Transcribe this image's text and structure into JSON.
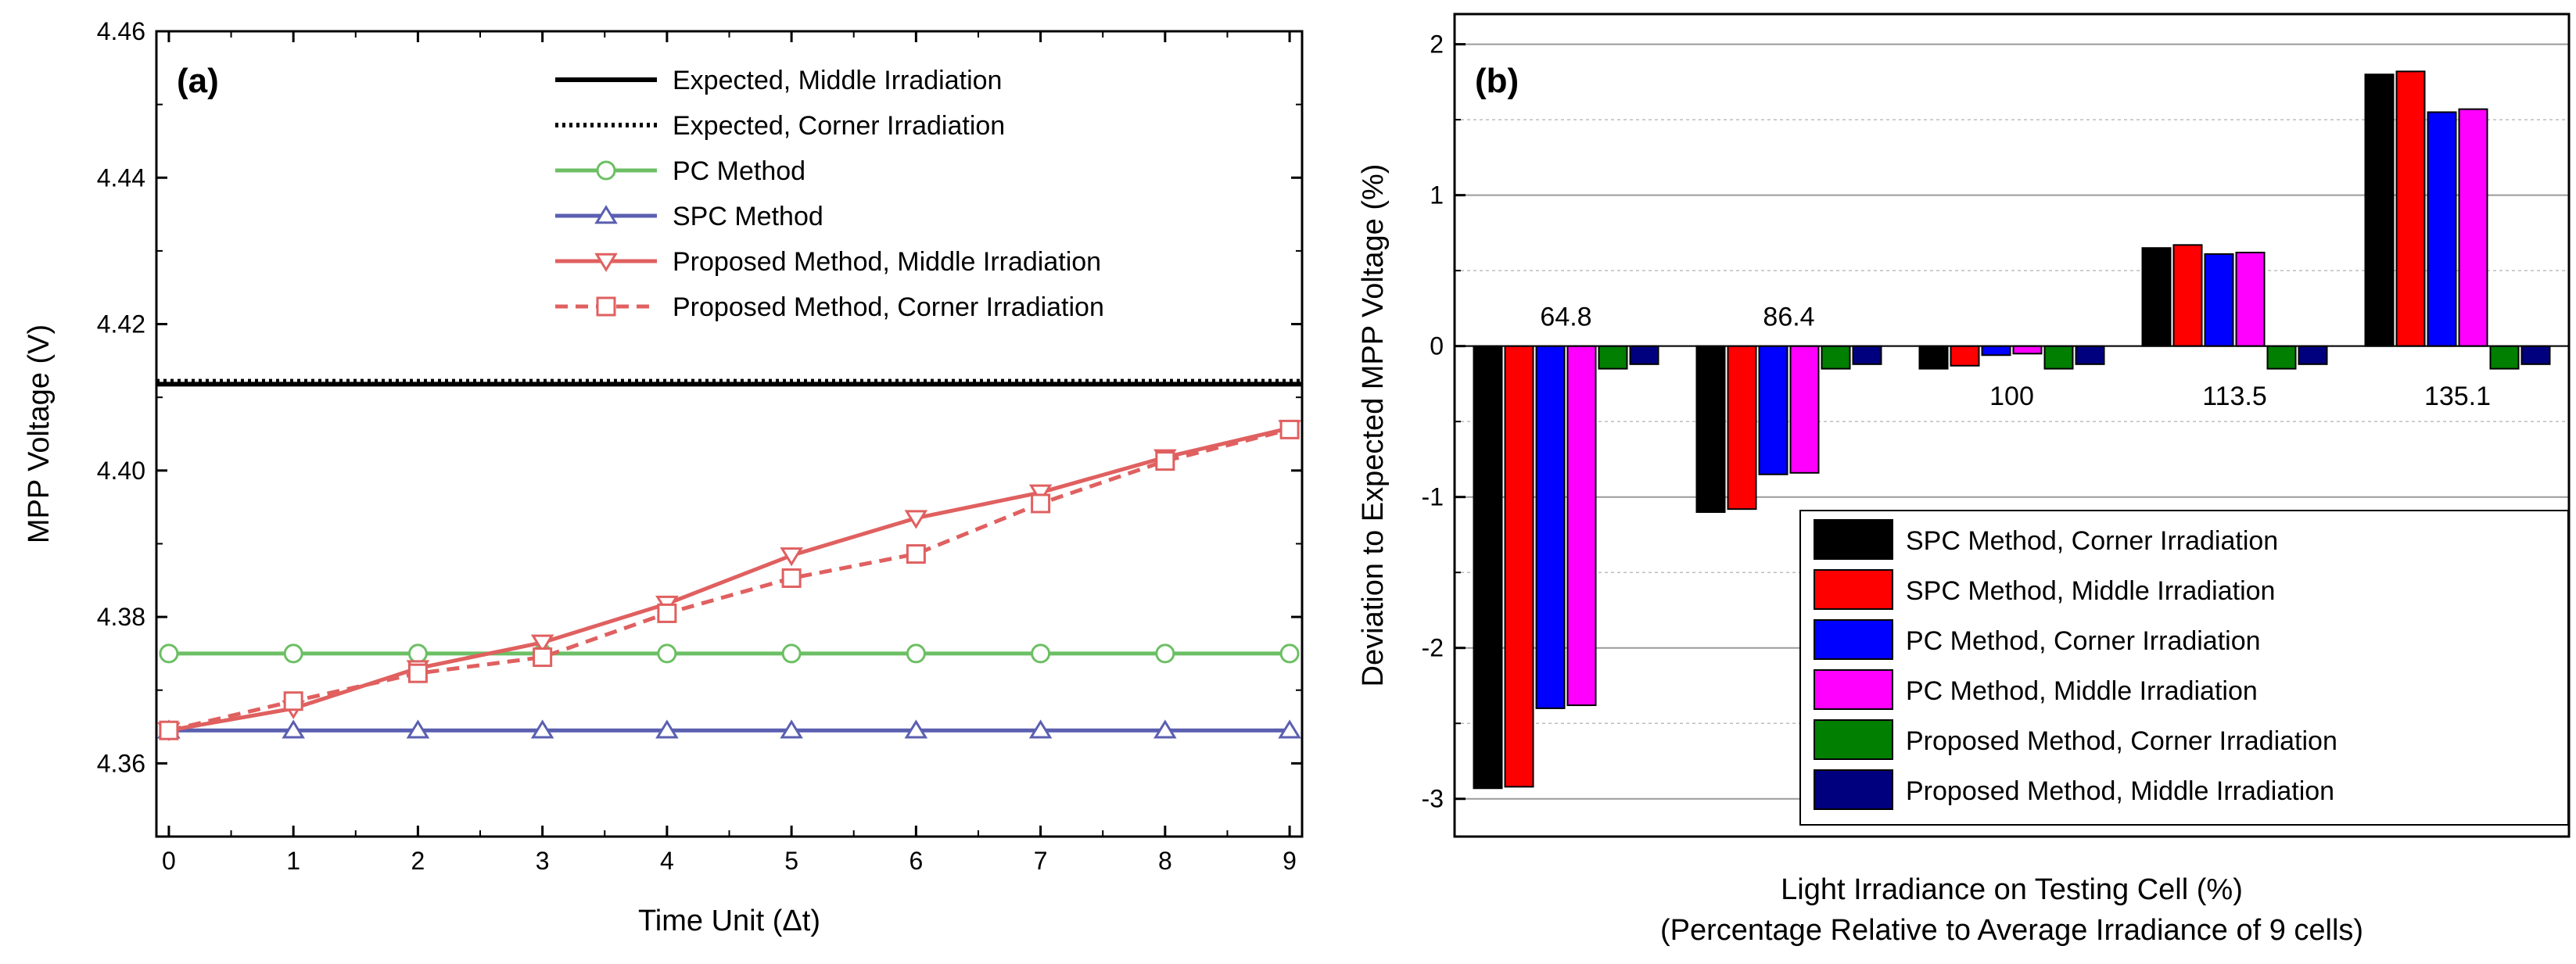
{
  "chart_data": [
    {
      "panel_label": "(a)",
      "type": "line",
      "xlabel": "Time Unit (Δt)",
      "ylabel": "MPP Voltage (V)",
      "xlim": [
        -0.1,
        9.1
      ],
      "ylim": [
        4.35,
        4.46
      ],
      "xticks": [
        "0",
        "1",
        "2",
        "3",
        "4",
        "5",
        "6",
        "7",
        "8",
        "9"
      ],
      "yticks": [
        "4.36",
        "4.38",
        "4.40",
        "4.42",
        "4.44",
        "4.46"
      ],
      "legend_position": "top-right",
      "series": [
        {
          "name": "Expected, Middle Irradiation",
          "color": "#000000",
          "style": "solid",
          "marker": "none",
          "x": [
            -0.1,
            9.1
          ],
          "values": [
            4.4118,
            4.4118
          ]
        },
        {
          "name": "Expected, Corner Irradiation",
          "color": "#000000",
          "style": "dotted",
          "marker": "none",
          "x": [
            -0.1,
            9.1
          ],
          "values": [
            4.4122,
            4.4122
          ]
        },
        {
          "name": "PC Method",
          "color": "#6cbf64",
          "style": "solid",
          "marker": "circle",
          "x": [
            0,
            1,
            2,
            3,
            4,
            5,
            6,
            7,
            8,
            9
          ],
          "values": [
            4.375,
            4.375,
            4.375,
            4.375,
            4.375,
            4.375,
            4.375,
            4.375,
            4.375,
            4.375
          ]
        },
        {
          "name": "SPC Method",
          "color": "#5a5fb0",
          "style": "solid",
          "marker": "triangle-up",
          "x": [
            0,
            1,
            2,
            3,
            4,
            5,
            6,
            7,
            8,
            9
          ],
          "values": [
            4.3645,
            4.3645,
            4.3645,
            4.3645,
            4.3645,
            4.3645,
            4.3645,
            4.3645,
            4.3645,
            4.3645
          ]
        },
        {
          "name": "Proposed Method, Middle Irradiation",
          "color": "#e06060",
          "style": "solid",
          "marker": "triangle-down",
          "x": [
            0,
            1,
            2,
            3,
            4,
            5,
            6,
            7,
            8,
            9
          ],
          "values": [
            4.3645,
            4.3675,
            4.373,
            4.3765,
            4.3818,
            4.3884,
            4.3935,
            4.397,
            4.4018,
            4.4058
          ]
        },
        {
          "name": "Proposed Method, Corner Irradiation",
          "color": "#e06060",
          "style": "dashed",
          "marker": "square",
          "x": [
            0,
            1,
            2,
            3,
            4,
            5,
            6,
            7,
            8,
            9
          ],
          "values": [
            4.3645,
            4.3685,
            4.3723,
            4.3745,
            4.3805,
            4.3853,
            4.3886,
            4.3955,
            4.4013,
            4.4056
          ]
        }
      ]
    },
    {
      "panel_label": "(b)",
      "type": "bar",
      "xlabel": "Light Irradiance on Testing Cell (%)",
      "xlabel_line2": "(Percentage Relative to Average Irradiance of 9 cells)",
      "ylabel": "Deviation to Expected MPP Voltage (%)",
      "ylim": [
        -3.25,
        2.2
      ],
      "yticks": [
        "-3",
        "-2",
        "-1",
        "0",
        "1",
        "2"
      ],
      "categories": [
        "64.8",
        "86.4",
        "100",
        "113.5",
        "135.1"
      ],
      "legend_position": "bottom-right",
      "series": [
        {
          "name": "SPC Method, Corner Irradiation",
          "color": "#000000",
          "values": [
            -2.93,
            -1.1,
            -0.15,
            0.65,
            1.8
          ]
        },
        {
          "name": "SPC Method, Middle Irradiation",
          "color": "#ff0000",
          "values": [
            -2.92,
            -1.08,
            -0.13,
            0.67,
            1.82
          ]
        },
        {
          "name": "PC Method, Corner Irradiation",
          "color": "#0000ff",
          "values": [
            -2.4,
            -0.85,
            -0.06,
            0.61,
            1.55
          ]
        },
        {
          "name": "PC Method, Middle Irradiation",
          "color": "#ff00ff",
          "values": [
            -2.38,
            -0.84,
            -0.05,
            0.62,
            1.57
          ]
        },
        {
          "name": "Proposed Method, Corner Irradiation",
          "color": "#007f00",
          "values": [
            -0.15,
            -0.15,
            -0.15,
            -0.15,
            -0.15
          ]
        },
        {
          "name": "Proposed Method, Middle Irradiation",
          "color": "#00007f",
          "values": [
            -0.12,
            -0.12,
            -0.12,
            -0.12,
            -0.12
          ]
        }
      ]
    }
  ]
}
